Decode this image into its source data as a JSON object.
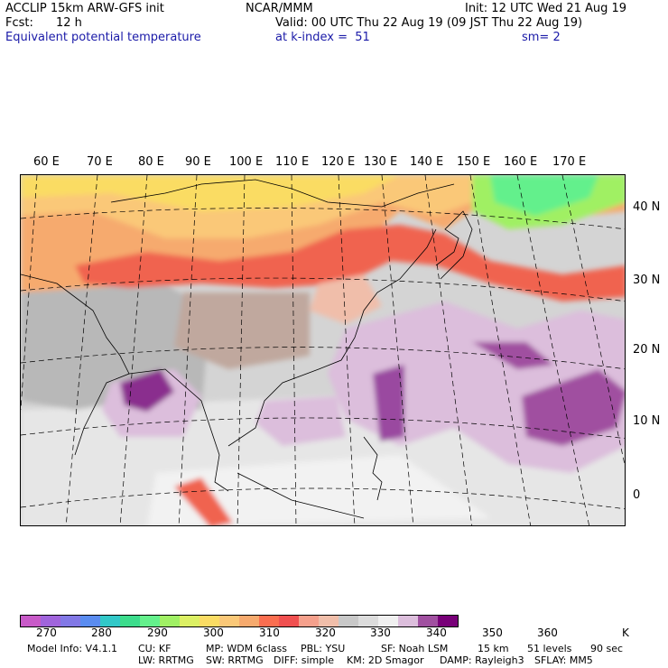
{
  "header": {
    "line1_left": "ACCLIP 15km ARW-GFS init",
    "line1_center": "NCAR/MMM",
    "line1_right": "Init: 12 UTC Wed 21 Aug 19",
    "fcst_label": "Fcst:",
    "fcst_value": "12 h",
    "valid": "Valid: 00 UTC Thu 22 Aug 19 (09 JST Thu 22 Aug 19)",
    "field": "Equivalent potential temperature",
    "level": "at k-index =  51",
    "smooth": "sm= 2"
  },
  "longitudes": [
    "60 E",
    "70 E",
    "80 E",
    "90 E",
    "100 E",
    "110 E",
    "120 E",
    "130 E",
    "140 E",
    "150 E",
    "160 E",
    "170 E"
  ],
  "latitudes": [
    "40 N",
    "30 N",
    "20 N",
    "10 N",
    "0"
  ],
  "colorbar": {
    "colors": [
      "#c85ac8",
      "#a064dc",
      "#8278e6",
      "#5a8cf0",
      "#32c8c8",
      "#3cdc8c",
      "#64f08c",
      "#a0f064",
      "#dcf064",
      "#fadc64",
      "#fac878",
      "#f6aa6e",
      "#fa6e50",
      "#f05050",
      "#f5a08c",
      "#f0beaa",
      "#c8c8c8",
      "#dcdcdc",
      "#f0f0f0",
      "#dcbedc",
      "#a050a0",
      "#780078"
    ],
    "labels": [
      "270",
      "280",
      "290",
      "300",
      "310",
      "320",
      "330",
      "340",
      "350",
      "360"
    ],
    "unit": "K"
  },
  "footer": {
    "line1": [
      "Model Info: V4.1.1",
      "CU: KF",
      "MP: WDM 6class",
      "PBL: YSU",
      "SF: Noah LSM",
      "15 km",
      "51 levels",
      "90 sec"
    ],
    "line2": [
      "LW: RRTMG",
      "SW: RRTMG",
      "DIFF: simple",
      "KM: 2D Smagor",
      "DAMP: Rayleigh3",
      "SFLAY: MM5"
    ]
  }
}
